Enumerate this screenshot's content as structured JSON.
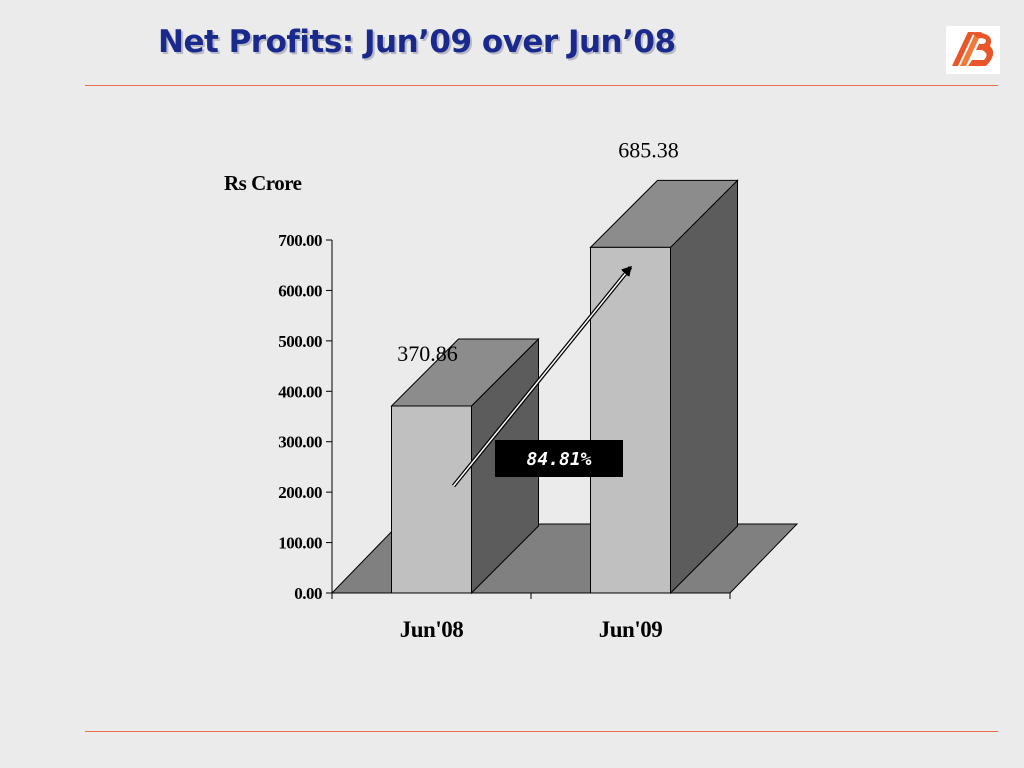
{
  "slide": {
    "title": "Net Profits: Jun’09 over Jun’08",
    "accent_color": "#e8704a",
    "title_color": "#1a2a8c",
    "logo_icon": "bank-of-baroda-logo"
  },
  "chart_data": {
    "type": "bar",
    "style": "3d",
    "title": "",
    "xlabel": "",
    "ylabel": "Rs Crore",
    "categories": [
      "Jun'08",
      "Jun'09"
    ],
    "values": [
      370.86,
      685.38
    ],
    "value_labels": [
      "370.86",
      "685.38"
    ],
    "ylim": [
      0,
      700
    ],
    "yticks": [
      "0.00",
      "100.00",
      "200.00",
      "300.00",
      "400.00",
      "500.00",
      "600.00",
      "700.00"
    ],
    "grid": false,
    "legend": "none",
    "annotation": {
      "text": "84.81%",
      "type": "arrow",
      "from": "Jun'08",
      "to": "Jun'09"
    }
  }
}
